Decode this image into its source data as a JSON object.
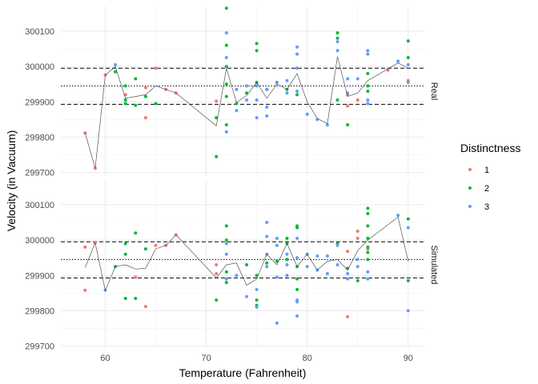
{
  "chart_data": {
    "type": "scatter",
    "xlabel": "Temperature (Fahrenheit)",
    "ylabel": "Velocity (in Vacuum)",
    "xlim": [
      55.6,
      91.6
    ],
    "ylim": [
      299690,
      300170
    ],
    "x_ticks": [
      60,
      70,
      80,
      90
    ],
    "y_ticks": [
      299700,
      299800,
      299900,
      300000,
      300100
    ],
    "grid": true,
    "legend": {
      "title": "Distinctness",
      "position": "right",
      "entries": [
        {
          "label": "1",
          "color": "#F8766D"
        },
        {
          "label": "2",
          "color": "#00BA38"
        },
        {
          "label": "3",
          "color": "#619CFF"
        }
      ]
    },
    "panels": [
      {
        "label": "Real",
        "hlines_dashed": [
          299995,
          299893
        ],
        "hline_dotted": 299945,
        "line": [
          [
            58,
            299812
          ],
          [
            59,
            299712
          ],
          [
            60,
            299975
          ],
          [
            61,
            300000
          ],
          [
            62,
            299910
          ],
          [
            63,
            299915
          ],
          [
            64,
            299920
          ],
          [
            65,
            299945
          ],
          [
            66,
            299935
          ],
          [
            67,
            299925
          ],
          [
            71,
            299832
          ],
          [
            72,
            299995
          ],
          [
            73,
            299898
          ],
          [
            74,
            299918
          ],
          [
            75,
            299955
          ],
          [
            76,
            299910
          ],
          [
            77,
            299950
          ],
          [
            78,
            299935
          ],
          [
            79,
            299980
          ],
          [
            80,
            299900
          ],
          [
            81,
            299853
          ],
          [
            82,
            299838
          ],
          [
            83,
            300028
          ],
          [
            84,
            299915
          ],
          [
            85,
            299925
          ],
          [
            86,
            299960
          ],
          [
            89,
            300010
          ],
          [
            90,
            299995
          ]
        ],
        "points": {
          "1": [
            [
              58,
              299812
            ],
            [
              59,
              299712
            ],
            [
              60,
              299976
            ],
            [
              62,
              299920
            ],
            [
              64,
              299940
            ],
            [
              64,
              299855
            ],
            [
              65,
              299995
            ],
            [
              66,
              299935
            ],
            [
              67,
              299925
            ],
            [
              71,
              299902
            ],
            [
              84,
              299920
            ],
            [
              84,
              299888
            ],
            [
              85,
              299905
            ],
            [
              88,
              299990
            ],
            [
              90,
              299960
            ]
          ],
          "2": [
            [
              61,
              299985
            ],
            [
              62,
              299945
            ],
            [
              62,
              299905
            ],
            [
              62,
              299895
            ],
            [
              63,
              299965
            ],
            [
              63,
              299890
            ],
            [
              64,
              299915
            ],
            [
              65,
              299895
            ],
            [
              71,
              299855
            ],
            [
              71,
              299745
            ],
            [
              72,
              300165
            ],
            [
              72,
              300060
            ],
            [
              72,
              300000
            ],
            [
              72,
              299950
            ],
            [
              72,
              299915
            ],
            [
              72,
              299835
            ],
            [
              73,
              299895
            ],
            [
              74,
              299925
            ],
            [
              75,
              300065
            ],
            [
              75,
              300045
            ],
            [
              75,
              299955
            ],
            [
              76,
              299935
            ],
            [
              77,
              299955
            ],
            [
              78,
              299935
            ],
            [
              79,
              299920
            ],
            [
              83,
              300095
            ],
            [
              83,
              300080
            ],
            [
              83,
              299905
            ],
            [
              84,
              299835
            ],
            [
              86,
              299980
            ],
            [
              86,
              299945
            ],
            [
              86,
              299930
            ],
            [
              90,
              300072
            ],
            [
              90,
              300025
            ]
          ],
          "3": [
            [
              61,
              300005
            ],
            [
              72,
              300095
            ],
            [
              72,
              300025
            ],
            [
              72,
              299815
            ],
            [
              73,
              299935
            ],
            [
              73,
              299875
            ],
            [
              74,
              299945
            ],
            [
              74,
              299905
            ],
            [
              75,
              299945
            ],
            [
              75,
              299905
            ],
            [
              75,
              299855
            ],
            [
              76,
              299935
            ],
            [
              76,
              299885
            ],
            [
              76,
              299860
            ],
            [
              77,
              299955
            ],
            [
              78,
              299960
            ],
            [
              78,
              299925
            ],
            [
              79,
              300055
            ],
            [
              79,
              300035
            ],
            [
              79,
              299995
            ],
            [
              79,
              299930
            ],
            [
              80,
              299865
            ],
            [
              81,
              299850
            ],
            [
              82,
              299835
            ],
            [
              83,
              300070
            ],
            [
              83,
              300045
            ],
            [
              84,
              299965
            ],
            [
              84,
              299925
            ],
            [
              85,
              299965
            ],
            [
              86,
              300045
            ],
            [
              86,
              300035
            ],
            [
              86,
              299905
            ],
            [
              86,
              299895
            ],
            [
              89,
              300015
            ],
            [
              90,
              300005
            ],
            [
              90,
              299955
            ]
          ]
        }
      },
      {
        "label": "Simulated",
        "hlines_dashed": [
          299995,
          299893
        ],
        "hline_dotted": 299945,
        "line": [
          [
            58,
            299922
          ],
          [
            59,
            299992
          ],
          [
            60,
            299857
          ],
          [
            61,
            299925
          ],
          [
            62,
            299930
          ],
          [
            63,
            299918
          ],
          [
            64,
            299920
          ],
          [
            65,
            299975
          ],
          [
            66,
            299985
          ],
          [
            67,
            300015
          ],
          [
            71,
            299893
          ],
          [
            72,
            299930
          ],
          [
            73,
            299935
          ],
          [
            74,
            299872
          ],
          [
            75,
            299890
          ],
          [
            76,
            299960
          ],
          [
            77,
            299930
          ],
          [
            78,
            299990
          ],
          [
            79,
            299925
          ],
          [
            80,
            299960
          ],
          [
            81,
            299915
          ],
          [
            82,
            299940
          ],
          [
            83,
            299945
          ],
          [
            84,
            299915
          ],
          [
            85,
            299970
          ],
          [
            86,
            300000
          ],
          [
            89,
            300065
          ],
          [
            90,
            299940
          ]
        ],
        "points": {
          "1": [
            [
              58,
              299980
            ],
            [
              58,
              299858
            ],
            [
              59,
              299992
            ],
            [
              63,
              299895
            ],
            [
              64,
              299812
            ],
            [
              65,
              299985
            ],
            [
              66,
              299985
            ],
            [
              67,
              300015
            ],
            [
              71,
              299930
            ],
            [
              71,
              299905
            ],
            [
              84,
              299968
            ],
            [
              84,
              299783
            ],
            [
              85,
              300025
            ],
            [
              85,
              300005
            ],
            [
              86,
              299975
            ]
          ],
          "2": [
            [
              61,
              299925
            ],
            [
              62,
              299990
            ],
            [
              62,
              299960
            ],
            [
              62,
              299835
            ],
            [
              63,
              300020
            ],
            [
              63,
              299835
            ],
            [
              64,
              299975
            ],
            [
              71,
              299830
            ],
            [
              72,
              300040
            ],
            [
              72,
              300000
            ],
            [
              72,
              299910
            ],
            [
              72,
              299880
            ],
            [
              74,
              299930
            ],
            [
              75,
              299900
            ],
            [
              75,
              299830
            ],
            [
              75,
              299815
            ],
            [
              76,
              299935
            ],
            [
              77,
              299940
            ],
            [
              78,
              300005
            ],
            [
              78,
              299945
            ],
            [
              78,
              299990
            ],
            [
              79,
              300040
            ],
            [
              79,
              300035
            ],
            [
              79,
              299925
            ],
            [
              79,
              299890
            ],
            [
              79,
              299860
            ],
            [
              80,
              299960
            ],
            [
              83,
              299990
            ],
            [
              84,
              299920
            ],
            [
              85,
              299885
            ],
            [
              86,
              300090
            ],
            [
              86,
              300075
            ],
            [
              86,
              300040
            ],
            [
              86,
              300005
            ],
            [
              86,
              299980
            ],
            [
              86,
              299965
            ],
            [
              86,
              299945
            ],
            [
              90,
              300060
            ],
            [
              90,
              299885
            ]
          ],
          "3": [
            [
              60,
              299858
            ],
            [
              72,
              299990
            ],
            [
              72,
              299960
            ],
            [
              72,
              299890
            ],
            [
              73,
              299900
            ],
            [
              74,
              299840
            ],
            [
              75,
              299860
            ],
            [
              75,
              299810
            ],
            [
              76,
              300050
            ],
            [
              76,
              300010
            ],
            [
              76,
              299960
            ],
            [
              76,
              299925
            ],
            [
              77,
              300005
            ],
            [
              77,
              299985
            ],
            [
              77,
              299895
            ],
            [
              77,
              299765
            ],
            [
              78,
              299960
            ],
            [
              78,
              299930
            ],
            [
              78,
              299900
            ],
            [
              79,
              300005
            ],
            [
              79,
              299950
            ],
            [
              79,
              299830
            ],
            [
              79,
              299825
            ],
            [
              79,
              299785
            ],
            [
              80,
              299960
            ],
            [
              80,
              299925
            ],
            [
              81,
              299955
            ],
            [
              81,
              299915
            ],
            [
              82,
              299955
            ],
            [
              82,
              299905
            ],
            [
              83,
              299985
            ],
            [
              83,
              299930
            ],
            [
              84,
              299905
            ],
            [
              84,
              299890
            ],
            [
              85,
              299945
            ],
            [
              85,
              299925
            ],
            [
              86,
              299910
            ],
            [
              86,
              299890
            ],
            [
              89,
              300070
            ],
            [
              90,
              300035
            ],
            [
              90,
              299800
            ]
          ]
        }
      }
    ]
  }
}
